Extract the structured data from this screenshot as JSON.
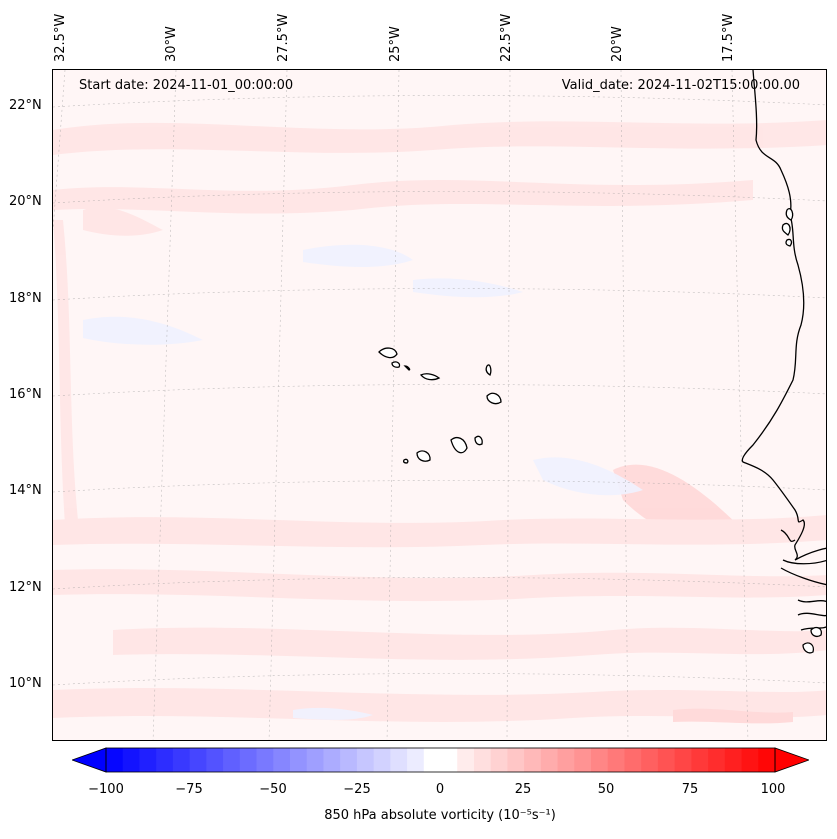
{
  "header": {
    "start_date": "Start date: 2024-11-01_00:00:00",
    "valid_date": "Valid_date: 2024-11-02T15:00:00.00"
  },
  "lon_labels": [
    "32.5°W",
    "30°W",
    "27.5°W",
    "25°W",
    "22.5°W",
    "20°W",
    "17.5°W"
  ],
  "lat_labels": [
    "22°N",
    "20°N",
    "18°N",
    "16°N",
    "14°N",
    "12°N",
    "10°N"
  ],
  "colorbar": {
    "label": "850 hPa absolute vorticity (10⁻⁵s⁻¹)",
    "ticks": [
      "−100",
      "−75",
      "−50",
      "−25",
      "0",
      "25",
      "50",
      "75",
      "100"
    ],
    "min": -100,
    "max": 100,
    "step": 5,
    "colormap": "bwr",
    "extend": "both"
  },
  "colors": {
    "negative": "#0000ff",
    "positive": "#ff0000",
    "neutral": "#ffffff"
  }
}
